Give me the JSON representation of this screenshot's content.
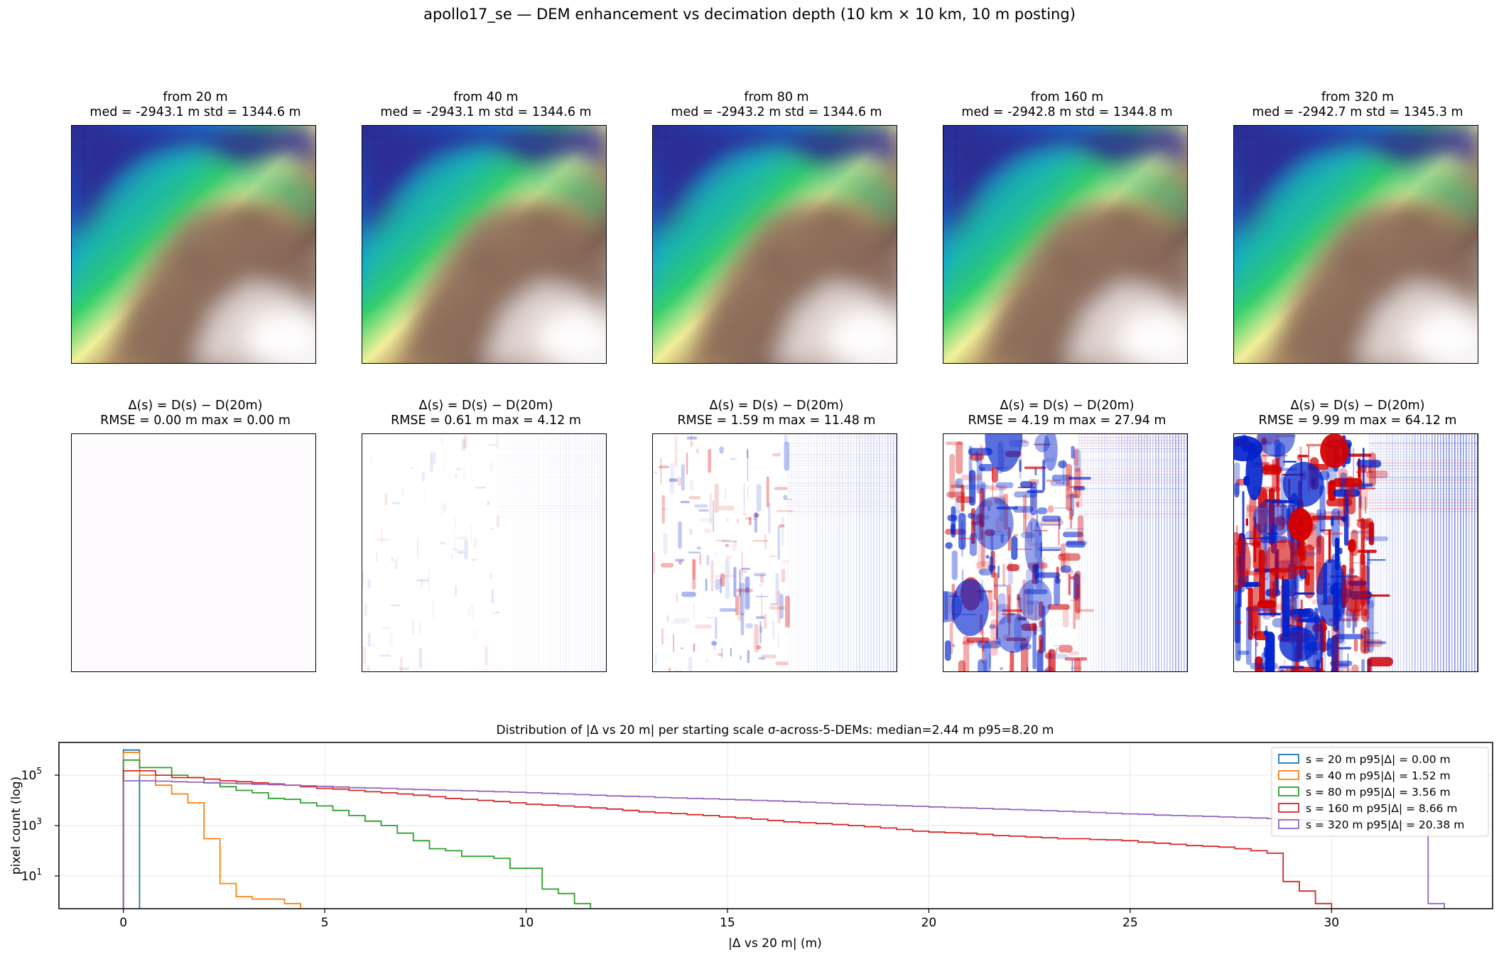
{
  "suptitle": "apollo17_se — DEM enhancement vs decimation depth (10 km × 10 km, 10 m posting)",
  "colors": {
    "s20": "#1f77b4",
    "s40": "#ff7f0e",
    "s80": "#2ca02c",
    "s160": "#d62728",
    "s320": "#9467bd",
    "grid": "#e6e6e6",
    "diff_pos": "#d40000",
    "diff_neg": "#0022cc"
  },
  "dem_row": [
    {
      "title": "from 20 m",
      "stats": "med = -2943.1 m   std = 1344.6 m"
    },
    {
      "title": "from 40 m",
      "stats": "med = -2943.1 m   std = 1344.6 m"
    },
    {
      "title": "from 80 m",
      "stats": "med = -2943.2 m   std = 1344.6 m"
    },
    {
      "title": "from 160 m",
      "stats": "med = -2942.8 m   std = 1344.8 m"
    },
    {
      "title": "from 320 m",
      "stats": "med = -2942.7 m   std = 1345.3 m"
    }
  ],
  "diff_row": [
    {
      "title": "Δ(s) = D(s) − D(20m)",
      "stats": "RMSE = 0.00 m   max = 0.00 m",
      "intensity": 0.0
    },
    {
      "title": "Δ(s) = D(s) − D(20m)",
      "stats": "RMSE = 0.61 m   max = 4.12 m",
      "intensity": 0.12
    },
    {
      "title": "Δ(s) = D(s) − D(20m)",
      "stats": "RMSE = 1.59 m   max = 11.48 m",
      "intensity": 0.35
    },
    {
      "title": "Δ(s) = D(s) − D(20m)",
      "stats": "RMSE = 4.19 m   max = 27.94 m",
      "intensity": 0.7
    },
    {
      "title": "Δ(s) = D(s) − D(20m)",
      "stats": "RMSE = 9.99 m   max = 64.12 m",
      "intensity": 1.0
    }
  ],
  "chart_data": {
    "type": "line",
    "title": "Distribution of |Δ vs 20 m| per starting scale  σ-across-5-DEMs: median=2.44 m  p95=8.20 m",
    "xlabel": "|Δ vs 20 m| (m)",
    "ylabel": "pixel count (log)",
    "xlim": [
      -1.6,
      34.0
    ],
    "ylim": [
      0.5,
      2000000
    ],
    "yscale": "log",
    "xticks": [
      0,
      5,
      10,
      15,
      20,
      25,
      30
    ],
    "yticks": [
      {
        "value": 10,
        "label": "10",
        "exp": "1"
      },
      {
        "value": 1000,
        "label": "10",
        "exp": "3"
      },
      {
        "value": 100000,
        "label": "10",
        "exp": "5"
      }
    ],
    "grid": true,
    "legend_position": "top-right",
    "bin_width": 0.4,
    "series": [
      {
        "key": "s20",
        "name": "s = 20 m   p95|Δ| = 0.00 m",
        "counts": [
          1000000
        ]
      },
      {
        "key": "s40",
        "name": "s = 40 m   p95|Δ| = 1.52 m",
        "counts": [
          800000,
          100000,
          40000,
          18000,
          8000,
          300,
          5,
          1.5,
          1.2,
          1.2,
          0.8
        ]
      },
      {
        "key": "s80",
        "name": "s = 80 m   p95|Δ| = 3.56 m",
        "counts": [
          400000,
          200000,
          200000,
          100000,
          80000,
          50000,
          35000,
          25000,
          20000,
          12000,
          11000,
          8000,
          6000,
          4000,
          2500,
          1500,
          1000,
          500,
          250,
          120,
          100,
          60,
          60,
          50,
          20,
          20,
          3,
          2,
          0.8
        ]
      },
      {
        "key": "s160",
        "name": "s = 160 m   p95|Δ| = 8.66 m",
        "counts": [
          150000,
          150000,
          100000,
          80000,
          80000,
          70000,
          60000,
          55000,
          50000,
          45000,
          40000,
          35000,
          30000,
          28000,
          25000,
          22000,
          20000,
          18000,
          16000,
          14000,
          12000,
          11000,
          10000,
          9000,
          8000,
          7000,
          6500,
          6000,
          5500,
          5000,
          4500,
          4000,
          3500,
          3200,
          3000,
          2700,
          2500,
          2200,
          2000,
          1800,
          1600,
          1400,
          1300,
          1200,
          1100,
          1000,
          900,
          800,
          700,
          600,
          550,
          520,
          500,
          450,
          400,
          380,
          350,
          330,
          300,
          300,
          280,
          270,
          250,
          220,
          200,
          180,
          160,
          150,
          140,
          120,
          100,
          80,
          6,
          2.5,
          0.8
        ]
      },
      {
        "key": "s320",
        "name": "s = 320 m   p95|Δ| = 20.38 m",
        "counts": [
          60000,
          60000,
          58000,
          55000,
          53000,
          50000,
          48000,
          46000,
          44000,
          42000,
          40000,
          38000,
          36000,
          34000,
          32000,
          31000,
          30000,
          28000,
          27000,
          26000,
          25000,
          24000,
          23000,
          22000,
          21000,
          20000,
          19000,
          18000,
          17000,
          16000,
          15000,
          14500,
          14000,
          13000,
          12500,
          12000,
          11500,
          11000,
          10500,
          10000,
          9500,
          9000,
          8500,
          8000,
          7500,
          7000,
          6700,
          6400,
          6100,
          5800,
          5500,
          5200,
          5000,
          4800,
          4500,
          4300,
          4100,
          3900,
          3700,
          3500,
          3300,
          3100,
          2900,
          2800,
          2600,
          2500,
          2400,
          2300,
          2200,
          2100,
          2000,
          1900,
          1800,
          1700,
          1600,
          1500,
          1450,
          1400,
          1300,
          1200,
          1100,
          0.8
        ]
      }
    ]
  }
}
